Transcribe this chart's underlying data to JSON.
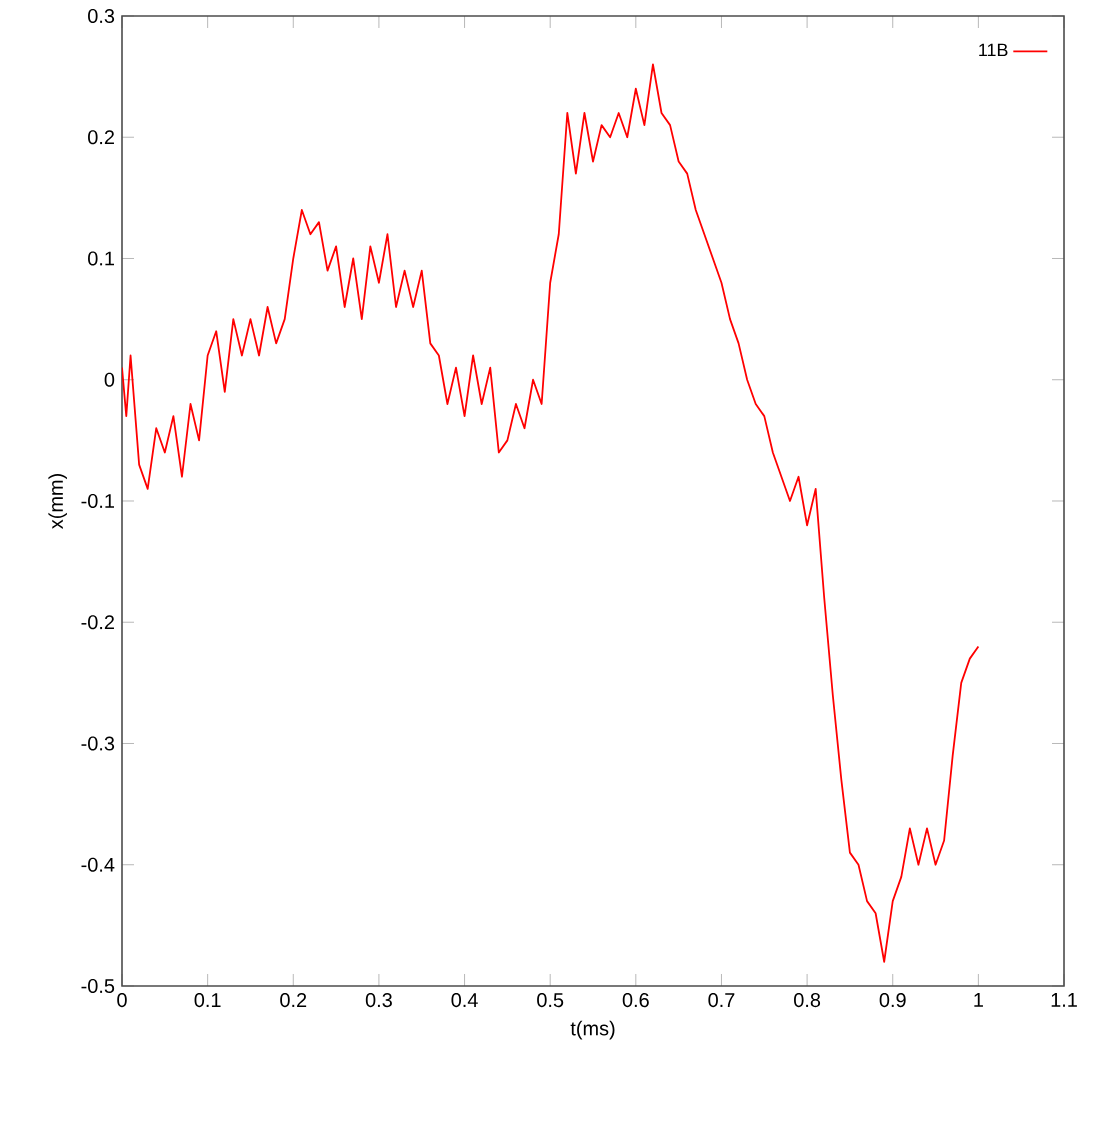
{
  "chart_data": {
    "type": "line",
    "xlabel": "t(ms)",
    "ylabel": "x(mm)",
    "xlim": [
      0,
      1.1
    ],
    "ylim": [
      -0.5,
      0.3
    ],
    "xticks": [
      0,
      0.1,
      0.2,
      0.3,
      0.4,
      0.5,
      0.6,
      0.7,
      0.8,
      0.9,
      1,
      1.1
    ],
    "yticks": [
      -0.5,
      -0.4,
      -0.3,
      -0.2,
      -0.1,
      0,
      0.1,
      0.2,
      0.3
    ],
    "grid": false,
    "legend": "top right",
    "marker": "none",
    "line_style": "solid",
    "series": [
      {
        "name": "11B",
        "color": "#ff0000",
        "x": [
          0,
          0.005,
          0.01,
          0.02,
          0.03,
          0.04,
          0.05,
          0.06,
          0.07,
          0.08,
          0.09,
          0.1,
          0.11,
          0.12,
          0.13,
          0.14,
          0.15,
          0.16,
          0.17,
          0.18,
          0.19,
          0.2,
          0.21,
          0.22,
          0.23,
          0.24,
          0.25,
          0.26,
          0.27,
          0.28,
          0.29,
          0.3,
          0.31,
          0.32,
          0.33,
          0.34,
          0.35,
          0.36,
          0.37,
          0.38,
          0.39,
          0.4,
          0.41,
          0.42,
          0.43,
          0.44,
          0.45,
          0.46,
          0.47,
          0.48,
          0.49,
          0.5,
          0.51,
          0.52,
          0.53,
          0.54,
          0.55,
          0.56,
          0.57,
          0.58,
          0.59,
          0.6,
          0.61,
          0.62,
          0.63,
          0.64,
          0.65,
          0.66,
          0.67,
          0.68,
          0.69,
          0.7,
          0.71,
          0.72,
          0.73,
          0.74,
          0.75,
          0.76,
          0.77,
          0.78,
          0.79,
          0.8,
          0.81,
          0.82,
          0.83,
          0.84,
          0.85,
          0.86,
          0.87,
          0.88,
          0.89,
          0.9,
          0.91,
          0.92,
          0.93,
          0.94,
          0.95,
          0.96,
          0.97,
          0.98,
          0.99,
          1.0
        ],
        "values": [
          0.01,
          -0.03,
          0.02,
          -0.07,
          -0.09,
          -0.04,
          -0.06,
          -0.03,
          -0.08,
          -0.02,
          -0.05,
          0.02,
          0.04,
          -0.01,
          0.05,
          0.02,
          0.05,
          0.02,
          0.06,
          0.03,
          0.05,
          0.1,
          0.14,
          0.12,
          0.13,
          0.09,
          0.11,
          0.06,
          0.1,
          0.05,
          0.11,
          0.08,
          0.12,
          0.06,
          0.09,
          0.06,
          0.09,
          0.03,
          0.02,
          -0.02,
          0.01,
          -0.03,
          0.02,
          -0.02,
          0.01,
          -0.06,
          -0.05,
          -0.02,
          -0.04,
          0.0,
          -0.02,
          0.08,
          0.12,
          0.22,
          0.17,
          0.22,
          0.18,
          0.21,
          0.2,
          0.22,
          0.2,
          0.24,
          0.21,
          0.26,
          0.22,
          0.21,
          0.18,
          0.17,
          0.14,
          0.12,
          0.1,
          0.08,
          0.05,
          0.03,
          0.0,
          -0.02,
          -0.03,
          -0.06,
          -0.08,
          -0.1,
          -0.08,
          -0.12,
          -0.09,
          -0.18,
          -0.26,
          -0.33,
          -0.39,
          -0.4,
          -0.43,
          -0.44,
          -0.48,
          -0.43,
          -0.41,
          -0.37,
          -0.4,
          -0.37,
          -0.4,
          -0.38,
          -0.31,
          -0.25,
          -0.23,
          -0.22
        ]
      }
    ]
  }
}
